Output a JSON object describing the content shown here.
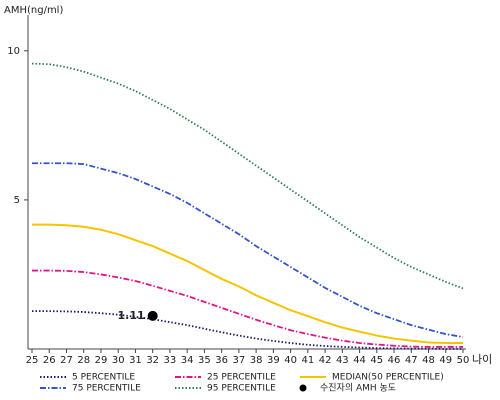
{
  "chart_data": {
    "type": "line",
    "y_label": "AMH(ng/ml)",
    "x_label": "나이",
    "x": [
      25,
      26,
      27,
      28,
      29,
      30,
      31,
      32,
      33,
      34,
      35,
      36,
      37,
      38,
      39,
      40,
      41,
      42,
      43,
      44,
      45,
      46,
      47,
      48,
      49,
      50
    ],
    "xlim": [
      25,
      50
    ],
    "xticks": [
      25,
      26,
      27,
      28,
      29,
      30,
      31,
      32,
      33,
      34,
      35,
      36,
      37,
      38,
      39,
      40,
      41,
      42,
      43,
      44,
      45,
      46,
      47,
      48,
      49,
      50
    ],
    "ylim": [
      0,
      11.2
    ],
    "yticks": [
      5,
      10
    ],
    "series": [
      {
        "name": "5 PERCENTILE",
        "color": "#1a1a6e",
        "style": "dotted",
        "values": [
          1.27,
          1.27,
          1.26,
          1.24,
          1.2,
          1.15,
          1.08,
          1.0,
          0.9,
          0.8,
          0.68,
          0.56,
          0.45,
          0.35,
          0.27,
          0.2,
          0.14,
          0.1,
          0.07,
          0.05,
          0.03,
          0.02,
          0.01,
          0.01,
          0.0,
          0.0
        ]
      },
      {
        "name": "25 PERCENTILE",
        "color": "#e0148c",
        "style": "dashdot",
        "values": [
          2.63,
          2.63,
          2.62,
          2.58,
          2.5,
          2.4,
          2.28,
          2.12,
          1.95,
          1.78,
          1.58,
          1.38,
          1.18,
          0.98,
          0.8,
          0.63,
          0.5,
          0.38,
          0.28,
          0.2,
          0.15,
          0.11,
          0.08,
          0.07,
          0.07,
          0.07
        ]
      },
      {
        "name": "MEDIAN(50 PERCENTILE)",
        "color": "#f5c400",
        "style": "solid",
        "values": [
          4.17,
          4.17,
          4.15,
          4.1,
          4.0,
          3.85,
          3.65,
          3.45,
          3.2,
          2.95,
          2.65,
          2.35,
          2.1,
          1.8,
          1.55,
          1.3,
          1.1,
          0.9,
          0.72,
          0.58,
          0.45,
          0.35,
          0.28,
          0.22,
          0.2,
          0.2
        ]
      },
      {
        "name": "75 PERCENTILE",
        "color": "#3355cc",
        "style": "dashdot",
        "values": [
          6.23,
          6.23,
          6.23,
          6.2,
          6.05,
          5.9,
          5.7,
          5.45,
          5.2,
          4.9,
          4.55,
          4.2,
          3.85,
          3.45,
          3.1,
          2.75,
          2.4,
          2.05,
          1.75,
          1.45,
          1.2,
          1.0,
          0.8,
          0.65,
          0.5,
          0.4
        ]
      },
      {
        "name": "95 PERCENTILE",
        "color": "#2e7d4f",
        "style": "dotted",
        "values": [
          9.57,
          9.55,
          9.45,
          9.3,
          9.1,
          8.9,
          8.65,
          8.35,
          8.05,
          7.7,
          7.35,
          6.95,
          6.55,
          6.15,
          5.75,
          5.35,
          4.95,
          4.55,
          4.15,
          3.75,
          3.4,
          3.05,
          2.75,
          2.5,
          2.25,
          2.03
        ]
      }
    ],
    "point": {
      "name": "수진자의 AMH 농도",
      "x": 32,
      "y": 1.11,
      "color": "#000000"
    }
  }
}
